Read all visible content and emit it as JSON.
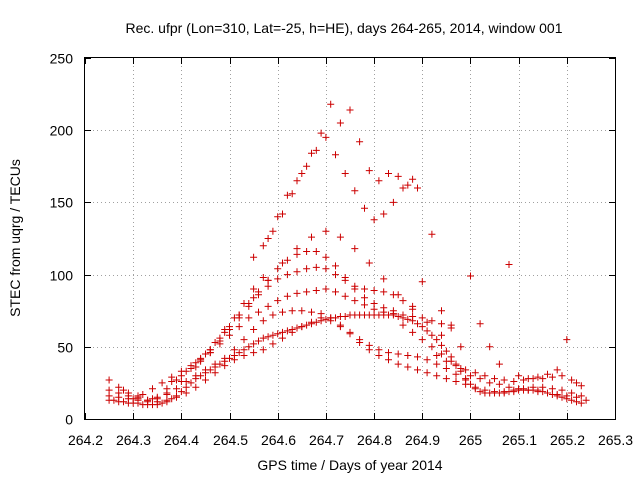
{
  "chart_data": {
    "type": "scatter",
    "title": "Rec. ufpr (Lon=310, Lat=-25, h=HE), days 264-265, 2014, window 001",
    "xlabel": "GPS time / Days of year 2014",
    "ylabel": "STEC from uqrg / TECUs",
    "xlim": [
      264.2,
      265.3
    ],
    "ylim": [
      0,
      250
    ],
    "xticks": [
      "264.2",
      "264.3",
      "264.4",
      "264.5",
      "264.6",
      "264.7",
      "264.8",
      "264.9",
      "265",
      "265.1",
      "265.2",
      "265.3"
    ],
    "yticks": [
      "0",
      "50",
      "100",
      "150",
      "200",
      "250"
    ],
    "grid": true,
    "legend": "none",
    "marker": "plus",
    "color": "#cc0000",
    "series": [
      {
        "x": [
          264.25,
          264.26,
          264.27,
          264.28,
          264.29,
          264.3,
          264.31,
          264.32,
          264.33,
          264.34,
          264.35,
          264.36,
          264.37,
          264.38,
          264.39,
          264.4,
          264.41,
          264.42,
          264.43,
          264.44,
          264.45,
          264.46,
          264.47,
          264.48,
          264.49,
          264.5,
          264.51,
          264.52,
          264.53,
          264.54,
          264.55,
          264.56,
          264.57,
          264.58,
          264.59,
          264.6,
          264.61,
          264.62,
          264.63,
          264.64,
          264.65,
          264.66,
          264.67,
          264.68,
          264.69,
          264.7,
          264.71,
          264.72,
          264.73,
          264.74,
          264.75,
          264.76,
          264.77,
          264.78,
          264.79,
          264.8,
          264.81,
          264.82,
          264.83,
          264.84,
          264.85,
          264.86,
          264.87,
          264.88,
          264.89,
          264.9,
          264.91,
          264.92,
          264.93,
          264.94,
          264.95,
          264.96,
          264.97,
          264.98,
          264.99,
          265.0,
          265.01,
          265.02,
          265.03,
          265.04,
          265.05,
          265.06,
          265.07,
          265.08,
          265.09,
          265.1,
          265.11,
          265.12,
          265.13,
          265.14,
          265.15,
          265.16,
          265.17,
          265.18,
          265.19,
          265.2,
          265.21,
          265.22,
          265.23
        ],
        "y": [
          13,
          13,
          12,
          12,
          11,
          11,
          11,
          10,
          10,
          10,
          10,
          11,
          12,
          14,
          16,
          19,
          22,
          25,
          28,
          30,
          32,
          34,
          36,
          38,
          40,
          42,
          44,
          46,
          48,
          50,
          52,
          54,
          56,
          57,
          58,
          59,
          60,
          61,
          62,
          63,
          64,
          65,
          66,
          67,
          68,
          69,
          70,
          70,
          71,
          71,
          72,
          72,
          72,
          72,
          72,
          72,
          72,
          72,
          72,
          72,
          71,
          70,
          69,
          68,
          66,
          64,
          61,
          58,
          55,
          51,
          47,
          43,
          38,
          33,
          28,
          24,
          21,
          19,
          18,
          18,
          18,
          18,
          18,
          19,
          19,
          20,
          20,
          20,
          20,
          20,
          19,
          18,
          17,
          16,
          15,
          14,
          13,
          12,
          11
        ]
      },
      {
        "x": [
          264.25,
          264.27,
          264.29,
          264.31,
          264.33,
          264.35,
          264.37,
          264.39,
          264.41,
          264.43,
          264.45,
          264.47,
          264.49,
          264.51,
          264.53,
          264.55,
          264.57,
          264.59,
          264.61,
          264.63,
          264.65,
          264.67,
          264.69,
          264.71,
          264.73,
          264.75,
          264.77,
          264.79,
          264.81,
          264.83,
          264.85,
          264.87,
          264.89,
          264.91,
          264.93,
          264.95,
          264.97,
          264.99,
          265.01,
          265.03,
          265.05,
          265.07,
          265.09,
          265.11,
          265.13,
          265.15,
          265.17,
          265.19,
          265.21,
          265.23
        ],
        "y": [
          16,
          15,
          14,
          13,
          12,
          12,
          13,
          15,
          18,
          22,
          27,
          32,
          37,
          41,
          44,
          46,
          48,
          52,
          56,
          60,
          64,
          67,
          70,
          68,
          64,
          59,
          53,
          48,
          44,
          41,
          38,
          36,
          34,
          32,
          30,
          28,
          26,
          24,
          22,
          20,
          19,
          19,
          20,
          21,
          22,
          22,
          21,
          20,
          18,
          16
        ]
      },
      {
        "x": [
          264.25,
          264.27,
          264.29,
          264.31,
          264.33,
          264.35,
          264.37,
          264.39,
          264.41,
          264.43,
          264.45,
          264.47,
          264.49,
          264.51,
          264.53,
          264.55,
          264.57,
          264.59,
          264.61,
          264.63,
          264.65,
          264.67,
          264.69,
          264.71,
          264.73,
          264.75,
          264.77,
          264.79,
          264.81,
          264.83,
          264.85,
          264.87,
          264.89,
          264.91,
          264.93,
          264.95,
          264.97,
          264.99
        ],
        "y": [
          20,
          18,
          16,
          14,
          13,
          14,
          17,
          21,
          26,
          30,
          34,
          38,
          42,
          48,
          55,
          62,
          68,
          72,
          74,
          75,
          75,
          74,
          73,
          70,
          65,
          60,
          55,
          51,
          48,
          46,
          45,
          44,
          43,
          41,
          38,
          35,
          31,
          27
        ]
      },
      {
        "x": [
          264.3,
          264.32,
          264.34,
          264.36,
          264.38,
          264.4,
          264.42,
          264.44,
          264.46,
          264.48,
          264.5,
          264.52,
          264.54,
          264.56,
          264.58,
          264.6,
          264.62,
          264.64,
          264.66,
          264.68,
          264.7,
          264.72,
          264.74,
          264.76,
          264.78,
          264.8,
          264.82,
          264.84,
          264.86,
          264.88,
          264.9,
          264.92,
          264.94,
          264.96
        ],
        "y": [
          14,
          17,
          21,
          25,
          29,
          33,
          37,
          41,
          46,
          52,
          58,
          64,
          70,
          74,
          78,
          82,
          85,
          87,
          88,
          89,
          90,
          88,
          85,
          82,
          79,
          76,
          74,
          73,
          72,
          71,
          70,
          68,
          66,
          63
        ]
      },
      {
        "x": [
          264.38,
          264.4,
          264.42,
          264.44,
          264.46,
          264.48,
          264.5,
          264.52,
          264.54,
          264.56,
          264.58,
          264.6,
          264.62,
          264.64,
          264.66,
          264.68,
          264.7,
          264.72,
          264.74,
          264.76,
          264.78,
          264.8,
          264.82,
          264.84,
          264.86,
          264.88
        ],
        "y": [
          26,
          30,
          35,
          40,
          46,
          54,
          62,
          70,
          78,
          86,
          92,
          97,
          100,
          102,
          104,
          105,
          104,
          100,
          96,
          92,
          90,
          89,
          88,
          86,
          82,
          78
        ]
      },
      {
        "x": [
          264.44,
          264.46,
          264.48,
          264.5,
          264.52,
          264.54,
          264.56,
          264.58,
          264.6,
          264.62,
          264.64,
          264.66,
          264.68,
          264.7,
          264.72,
          264.74,
          264.76,
          264.78,
          264.8,
          264.82,
          264.84
        ],
        "y": [
          42,
          48,
          56,
          64,
          72,
          80,
          88,
          96,
          104,
          110,
          114,
          116,
          116,
          112,
          106,
          98,
          90,
          84,
          80,
          77,
          75
        ]
      },
      {
        "x": [
          264.27,
          264.29,
          264.31,
          264.33,
          264.35,
          264.37,
          264.39,
          264.41,
          264.43,
          264.45,
          264.47,
          264.49,
          264.51,
          264.53,
          264.55,
          264.57
        ],
        "y": [
          22,
          18,
          15,
          13,
          15,
          21,
          27,
          33,
          39,
          45,
          53,
          62,
          70,
          80,
          90,
          98
        ]
      },
      {
        "x": [
          264.25,
          264.28,
          264.31,
          264.34,
          264.37,
          264.4,
          264.43,
          264.46,
          264.49,
          264.52,
          264.55,
          264.58,
          264.61,
          264.64,
          264.67,
          264.7,
          264.73,
          264.76,
          264.79,
          264.82,
          264.85,
          264.88,
          264.91,
          264.94
        ],
        "y": [
          27,
          20,
          16,
          14,
          18,
          26,
          36,
          48,
          60,
          72,
          84,
          96,
          108,
          118,
          126,
          130,
          126,
          118,
          108,
          97,
          86,
          76,
          67,
          58
        ]
      },
      {
        "x": [
          264.58,
          264.6,
          264.62,
          264.64,
          264.66,
          264.68,
          264.7,
          264.72,
          264.74,
          264.76,
          264.78,
          264.8,
          264.82,
          264.84,
          264.86,
          264.88
        ],
        "y": [
          125,
          140,
          155,
          165,
          175,
          186,
          195,
          183,
          170,
          158,
          146,
          138,
          142,
          150,
          160,
          166
        ]
      },
      {
        "x": [
          264.55,
          264.57,
          264.59,
          264.61,
          264.63,
          264.65,
          264.67,
          264.69,
          264.71,
          264.73,
          264.75,
          264.77,
          264.79,
          264.81,
          264.83,
          264.85,
          264.87,
          264.89
        ],
        "y": [
          112,
          120,
          130,
          142,
          156,
          170,
          184,
          198,
          218,
          205,
          214,
          192,
          172,
          165,
          170,
          168,
          162,
          160
        ]
      },
      {
        "x": [
          264.86,
          264.88,
          264.9,
          264.92,
          264.94,
          264.96,
          264.98,
          265.0,
          265.02,
          265.04,
          265.06,
          265.08,
          265.1,
          265.12,
          265.14,
          265.16,
          265.18,
          265.2,
          265.22,
          265.24
        ],
        "y": [
          65,
          60,
          55,
          50,
          45,
          40,
          35,
          30,
          28,
          25,
          24,
          22,
          21,
          20,
          19,
          18,
          17,
          16,
          15,
          13
        ]
      },
      {
        "x": [
          264.9,
          264.92,
          264.94,
          264.96,
          264.98,
          265.0,
          265.02,
          265.04,
          265.06,
          265.08,
          265.1,
          265.12,
          265.14,
          265.16,
          265.18,
          265.2,
          265.22
        ],
        "y": [
          95,
          128,
          75,
          65,
          50,
          99,
          66,
          50,
          38,
          107,
          30,
          28,
          29,
          31,
          34,
          55,
          25
        ]
      },
      {
        "x": [
          264.93,
          264.95,
          264.97,
          264.99,
          265.01,
          265.03,
          265.05,
          265.07,
          265.09,
          265.11,
          265.13,
          265.15,
          265.17,
          265.19,
          265.21,
          265.23
        ],
        "y": [
          44,
          40,
          37,
          34,
          32,
          30,
          28,
          27,
          26,
          27,
          28,
          28,
          29,
          30,
          27,
          23
        ]
      }
    ]
  }
}
